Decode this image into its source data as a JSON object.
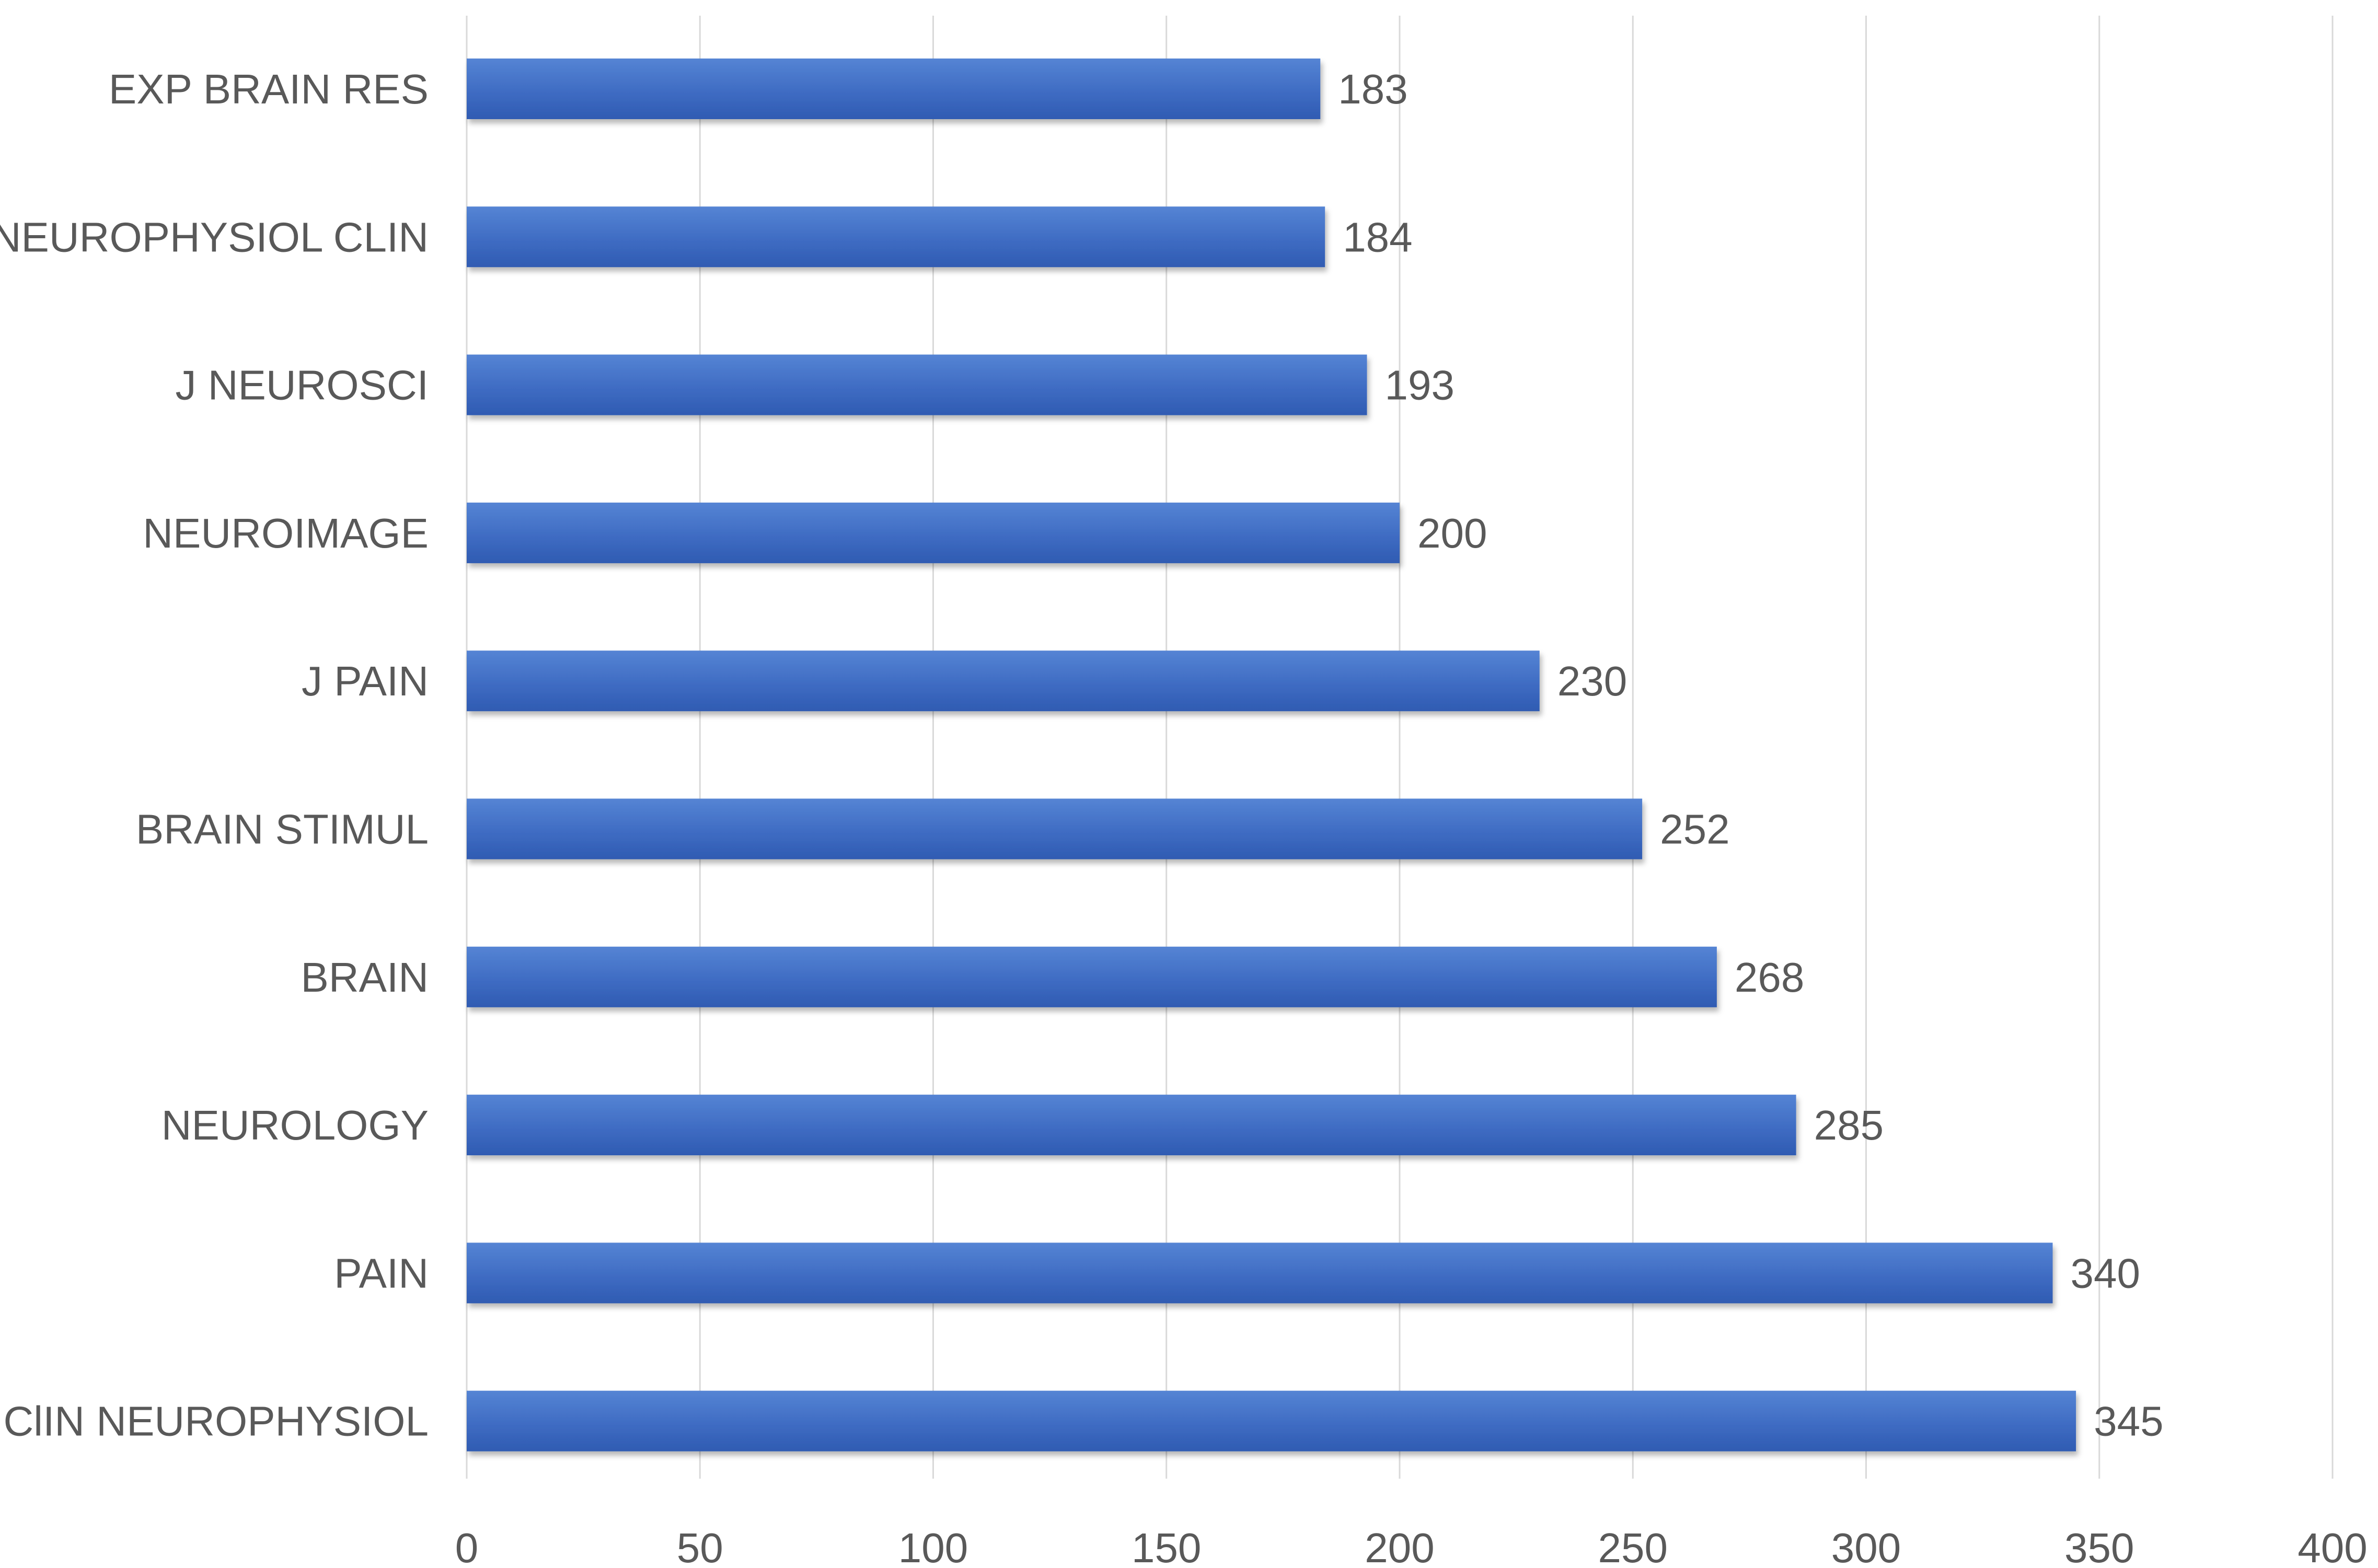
{
  "chart_data": {
    "type": "bar",
    "orientation": "horizontal",
    "title": "",
    "xlabel": "",
    "ylabel": "",
    "categories": [
      "EXP BRAIN RES",
      "NEUROPHYSIOL CLIN",
      "J NEUROSCI",
      "NEUROIMAGE",
      "J PAIN",
      "BRAIN STIMUL",
      "BRAIN",
      "NEUROLOGY",
      "PAIN",
      "ClIN NEUROPHYSIOL"
    ],
    "values": [
      183,
      184,
      193,
      200,
      230,
      252,
      268,
      285,
      340,
      345
    ],
    "xlim": [
      0,
      400
    ],
    "xticks": [
      0,
      50,
      100,
      150,
      200,
      250,
      300,
      350,
      400
    ],
    "grid": "vertical",
    "legend": "none",
    "bar_color": "#4472C4",
    "bar_color_dark": "#2E5BB0"
  }
}
